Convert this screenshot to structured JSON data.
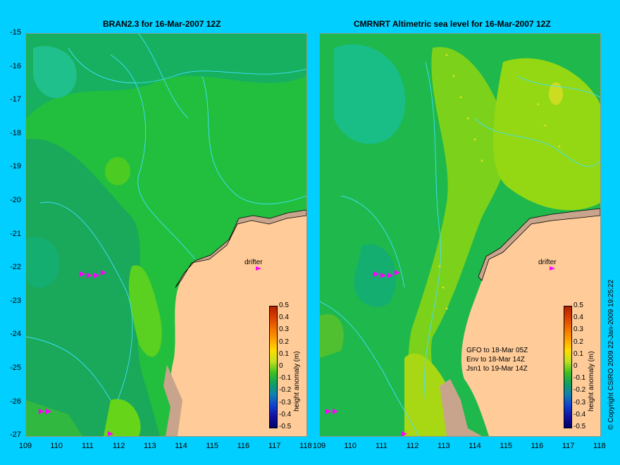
{
  "left_panel": {
    "title": "BRAN2.3 for 16-Mar-2007 12Z",
    "drifter_label": "drifter"
  },
  "right_panel": {
    "title": "CMRNRT Altimetric sea level  for 16-Mar-2007 12Z",
    "drifter_label": "drifter",
    "notes": [
      "GFO to 18-Mar 05Z",
      "Env to 18-Mar 14Z",
      "Jsn1 to 19-Mar 14Z"
    ]
  },
  "y_ticks": [
    "-15",
    "-16",
    "-17",
    "-18",
    "-19",
    "-20",
    "-21",
    "-22",
    "-23",
    "-24",
    "-25",
    "-26",
    "-27"
  ],
  "x_ticks": [
    "109",
    "110",
    "111",
    "112",
    "113",
    "114",
    "115",
    "116",
    "117",
    "118"
  ],
  "colorbar": {
    "label": "height anomaly (m)",
    "ticks": [
      "0.5",
      "0.4",
      "0.3",
      "0.2",
      "0.1",
      "0",
      "-0.1",
      "-0.2",
      "-0.3",
      "-0.4",
      "-0.5"
    ]
  },
  "copyright": "© Copyright CSIRO 2009   22-Jan-2009 19:25:22",
  "colors": {
    "background": "#00cfff",
    "land": "#ffcc99",
    "coast_land": "#c8a48c",
    "drifter": "#ff00ff",
    "contour": "#40e0ff"
  }
}
